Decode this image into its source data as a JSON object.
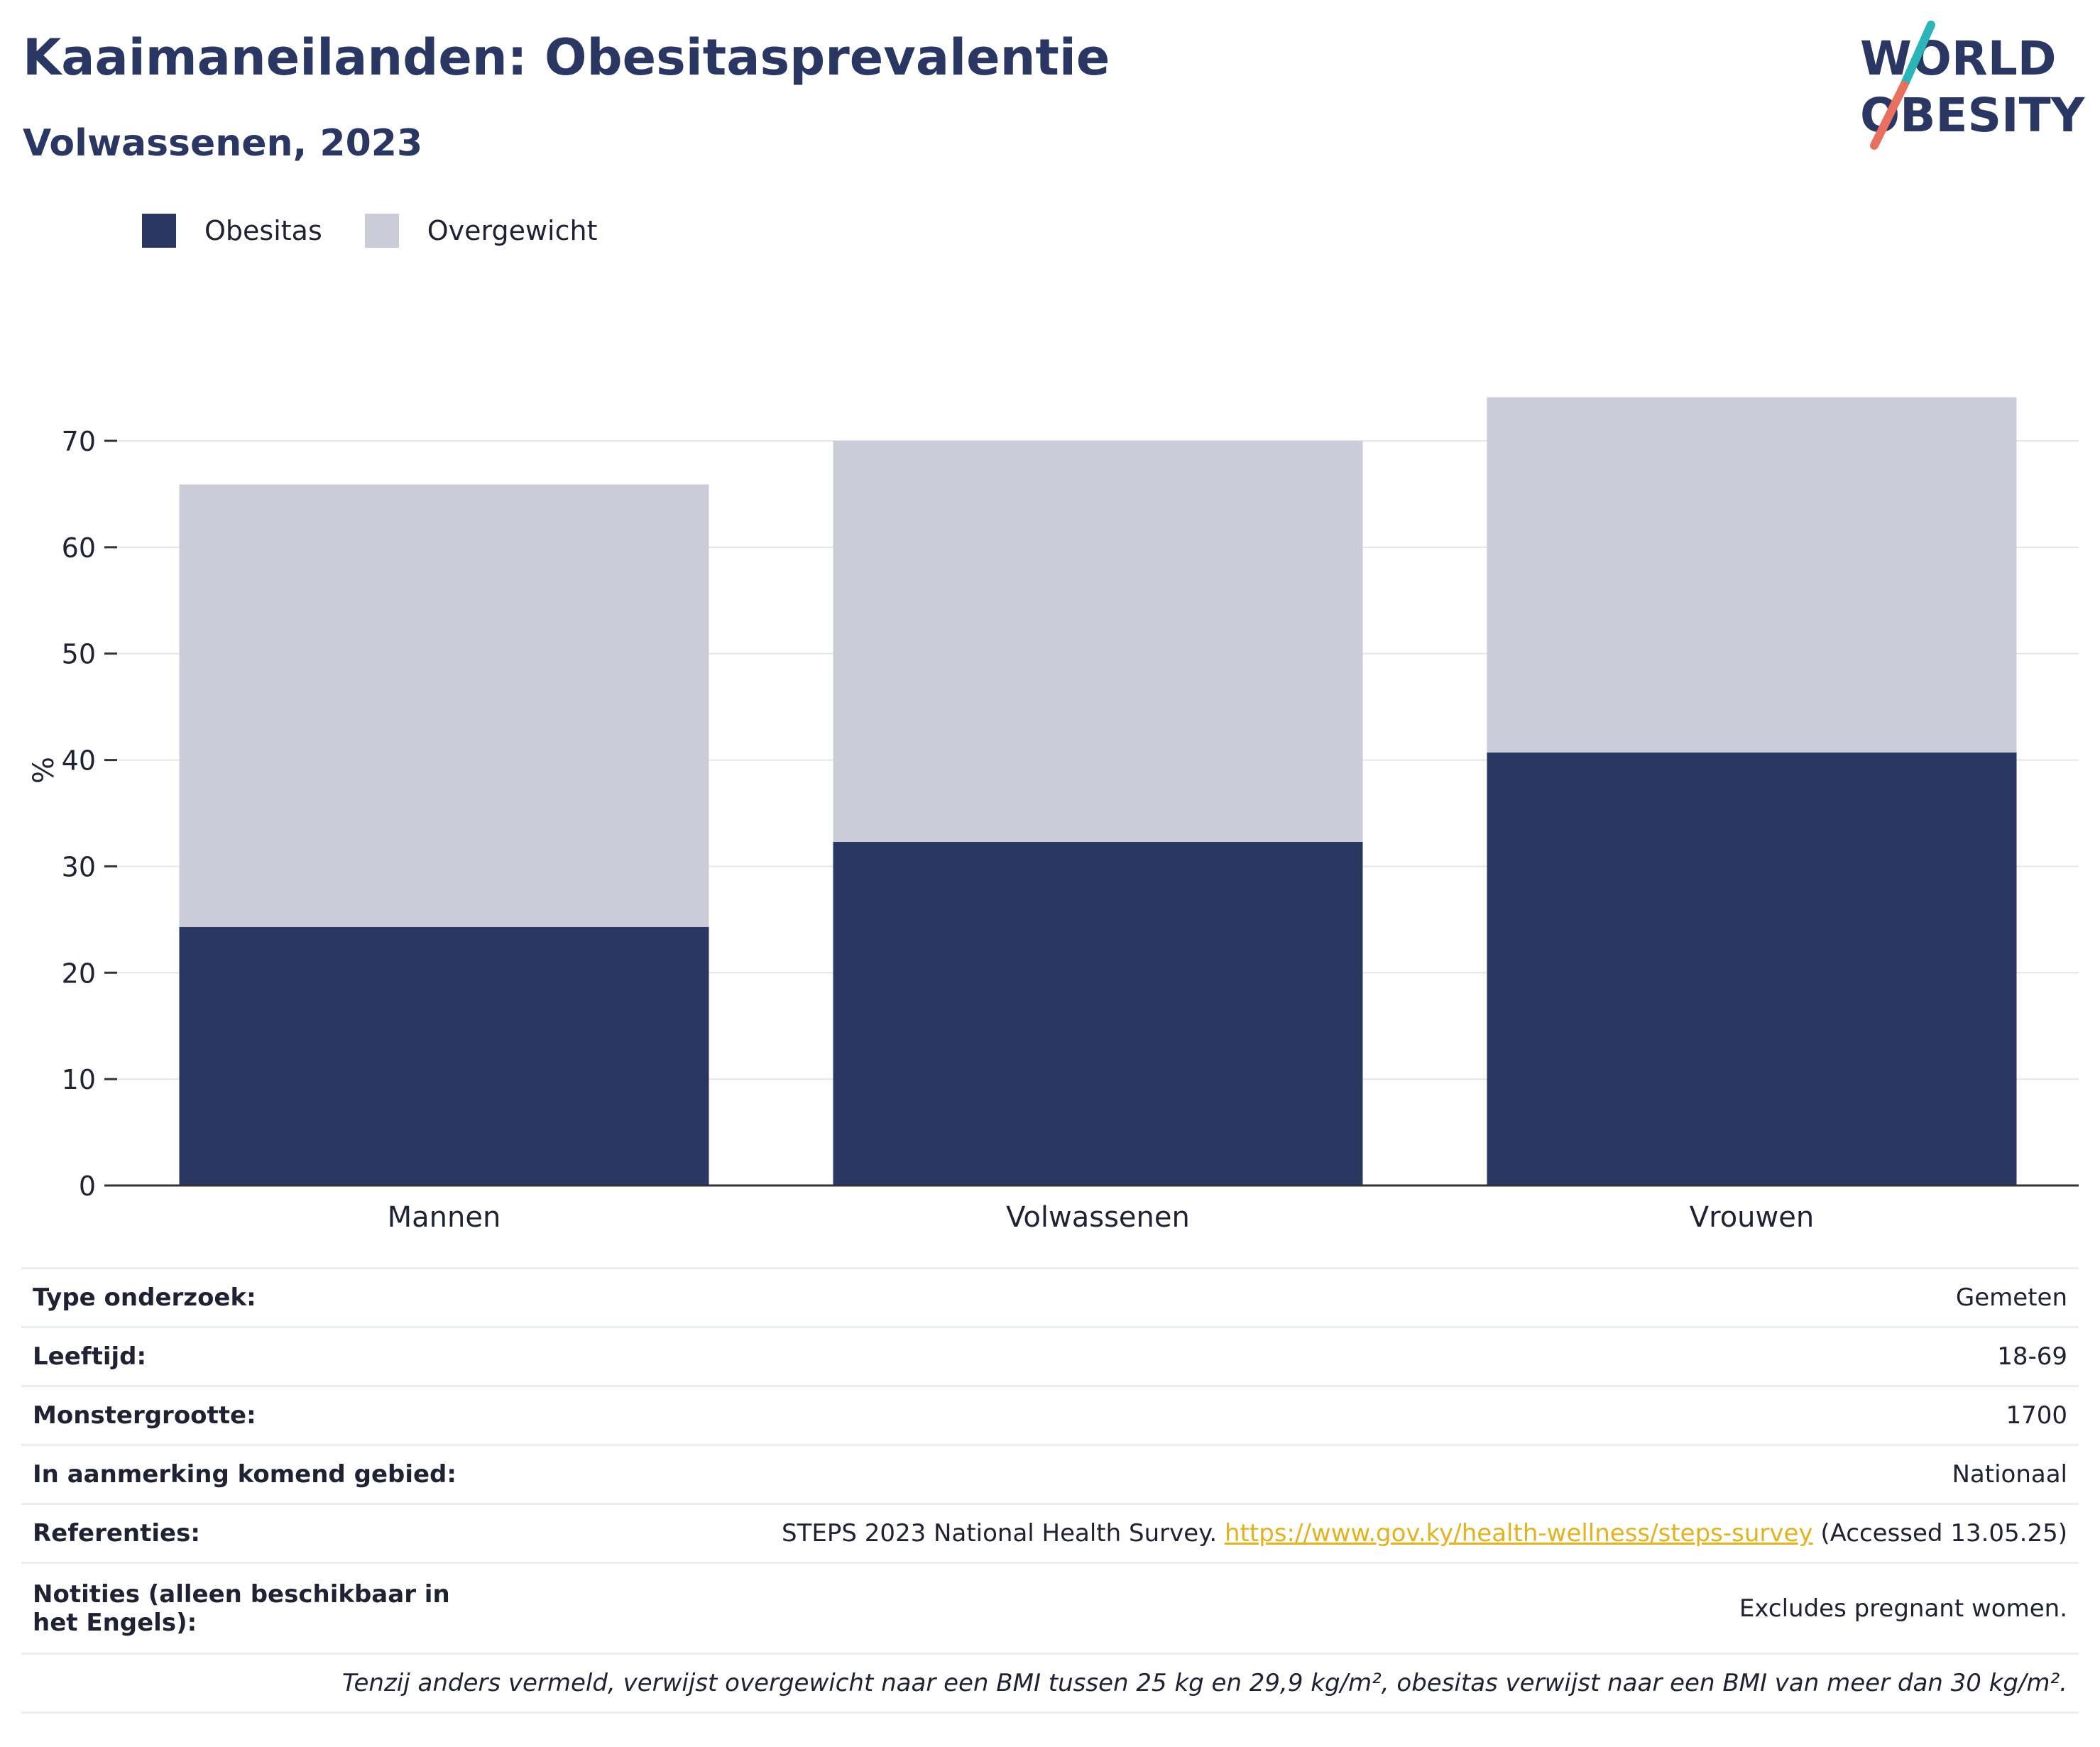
{
  "header": {
    "title": "Kaaimaneilanden: Obesitasprevalentie",
    "subtitle": "Volwassenen, 2023"
  },
  "logo": {
    "line1": "WORLD",
    "line2": "OBESITY",
    "accent_teal": "#2bb5b8",
    "accent_coral": "#e8705f"
  },
  "colors": {
    "obesity": "#2a3763",
    "overweight": "#caccd8",
    "grid": "#e6e6e6",
    "axis": "#333333",
    "link": "#e4b21e"
  },
  "legend": [
    {
      "label": "Obesitas",
      "color": "#2a3763"
    },
    {
      "label": "Overgewicht",
      "color": "#caccd8"
    }
  ],
  "chart_data": {
    "type": "bar",
    "stacked": true,
    "categories": [
      "Mannen",
      "Volwassenen",
      "Vrouwen"
    ],
    "series": [
      {
        "name": "Obesitas",
        "values": [
          24.3,
          32.3,
          40.7
        ],
        "color": "#2a3763"
      },
      {
        "name": "Overgewicht",
        "values": [
          41.6,
          37.7,
          33.4
        ],
        "color": "#caccd8"
      }
    ],
    "ylabel": "%",
    "ylim": [
      0,
      80
    ],
    "yticks": [
      0,
      10,
      20,
      30,
      40,
      50,
      60,
      70
    ],
    "grid": true,
    "legend_position": "top-left"
  },
  "info": {
    "survey_type": {
      "label": "Type onderzoek:",
      "value": "Gemeten"
    },
    "age": {
      "label": "Leeftijd:",
      "value": "18-69"
    },
    "sample_size": {
      "label": "Monstergrootte:",
      "value": "1700"
    },
    "area": {
      "label": "In aanmerking komend gebied:",
      "value": "Nationaal"
    },
    "references": {
      "label": "Referenties:",
      "text": "STEPS 2023 National Health Survey.",
      "link": "https://www.gov.ky/health-wellness/steps-survey",
      "accessed": "(Accessed 13.05.25)"
    },
    "notes": {
      "label": "Notities (alleen beschikbaar in het Engels):",
      "value": "Excludes pregnant women."
    },
    "footnote": "Tenzij anders vermeld, verwijst overgewicht naar een BMI tussen 25 kg en 29,9 kg/m², obesitas verwijst naar een BMI van meer dan 30 kg/m²."
  }
}
